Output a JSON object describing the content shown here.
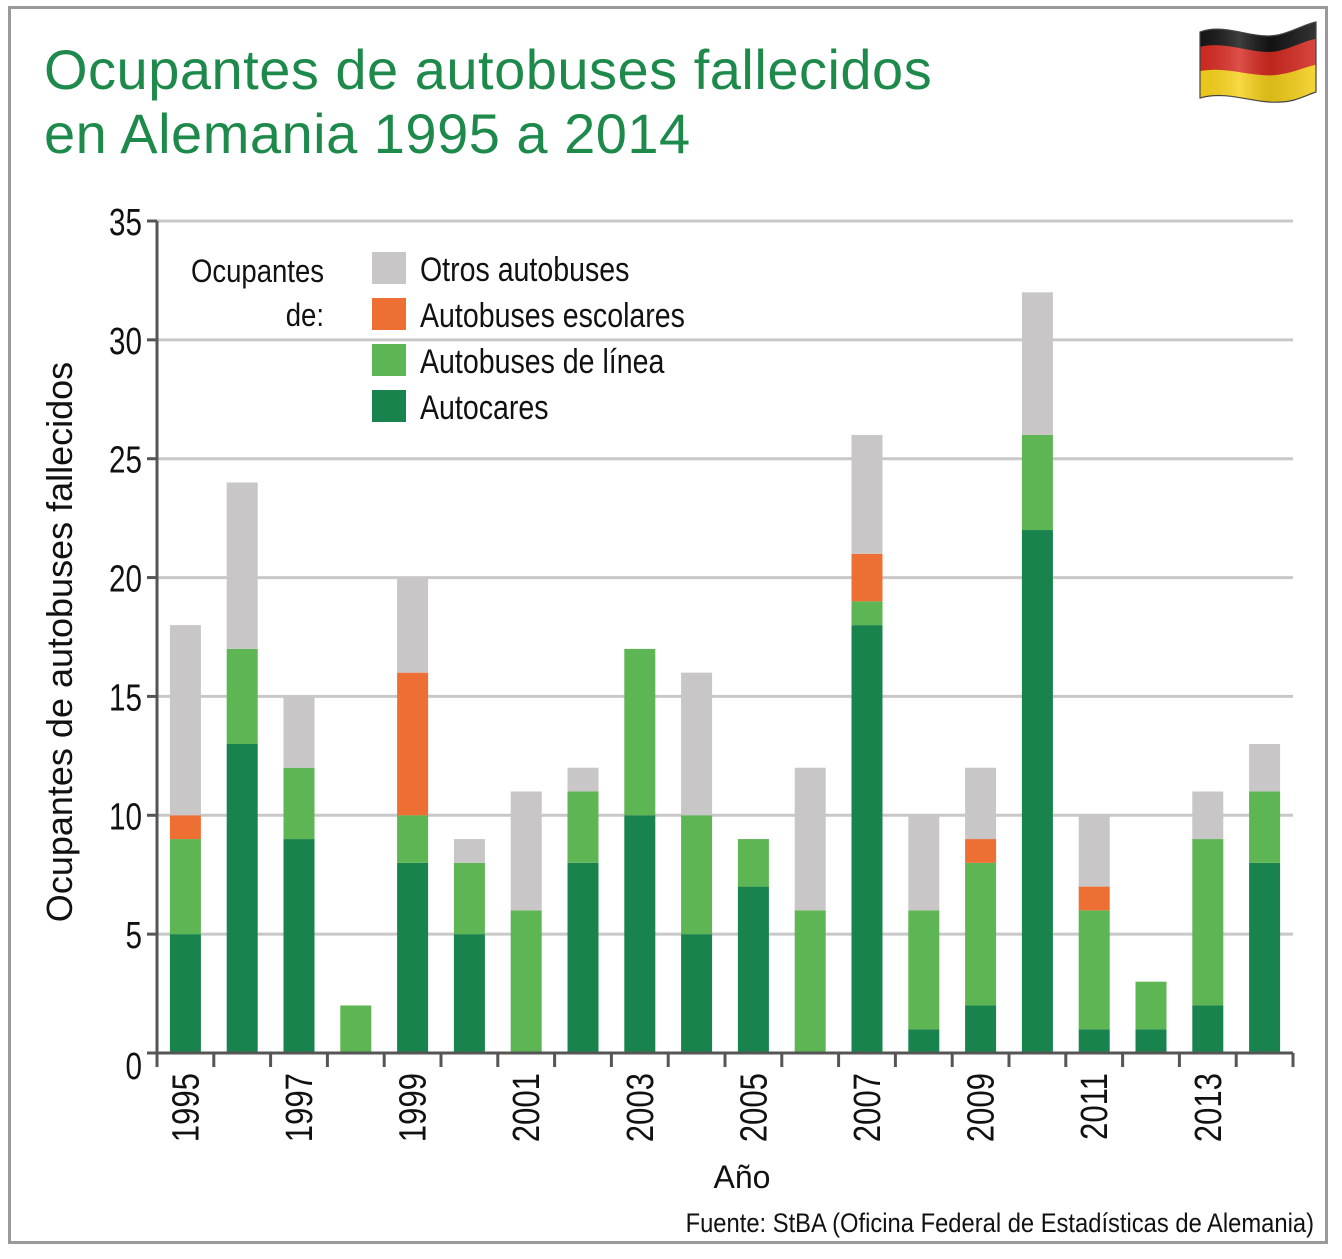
{
  "title": {
    "line1": "Ocupantes de autobuses fallecidos",
    "line2": "en Alemania 1995 a 2014"
  },
  "flag_icon": "germany-flag-icon",
  "source": "Fuente: StBA (Oficina Federal de Estadísticas de Alemania)",
  "colors": {
    "title": "#1d8a4b",
    "otros": "#c8c6c6",
    "escolares": "#ee6f34",
    "linea": "#5db553",
    "autocares": "#18834c",
    "grid": "#c8c8c8",
    "axis": "#555555"
  },
  "chart_data": {
    "type": "bar",
    "stacked": true,
    "xlabel": "Año",
    "ylabel": "Ocupantes de autobuses fallecidos",
    "ylim": [
      0,
      35
    ],
    "yticks": [
      0,
      5,
      10,
      15,
      20,
      25,
      30,
      35
    ],
    "grid": true,
    "legend_title_line1": "Ocupantes",
    "legend_title_line2": "de:",
    "legend_position": "top-left",
    "categories": [
      1995,
      1996,
      1997,
      1998,
      1999,
      2000,
      2001,
      2002,
      2003,
      2004,
      2005,
      2006,
      2007,
      2008,
      2009,
      2010,
      2011,
      2012,
      2013,
      2014
    ],
    "x_tick_labels": [
      "1995",
      "1997",
      "1999",
      "2001",
      "2003",
      "2005",
      "2007",
      "2009",
      "2011",
      "2013"
    ],
    "series": [
      {
        "name": "Autocares",
        "color": "#18834c",
        "values": [
          5,
          13,
          9,
          0,
          8,
          5,
          0,
          8,
          10,
          5,
          7,
          0,
          18,
          1,
          2,
          22,
          1,
          1,
          2,
          8
        ]
      },
      {
        "name": "Autobuses de línea",
        "color": "#5db553",
        "values": [
          4,
          4,
          3,
          2,
          2,
          3,
          6,
          3,
          7,
          5,
          2,
          6,
          1,
          5,
          6,
          4,
          5,
          2,
          7,
          3
        ]
      },
      {
        "name": "Autobuses escolares",
        "color": "#ee6f34",
        "values": [
          1,
          0,
          0,
          0,
          6,
          0,
          0,
          0,
          0,
          0,
          0,
          0,
          2,
          0,
          1,
          0,
          1,
          0,
          0,
          0
        ]
      },
      {
        "name": "Otros autobuses",
        "color": "#c8c6c6",
        "values": [
          8,
          7,
          3,
          0,
          4,
          1,
          5,
          1,
          0,
          6,
          0,
          6,
          5,
          4,
          3,
          6,
          3,
          0,
          2,
          2
        ]
      }
    ],
    "legend_order": [
      "Otros autobuses",
      "Autobuses escolares",
      "Autobuses de línea",
      "Autocares"
    ]
  }
}
